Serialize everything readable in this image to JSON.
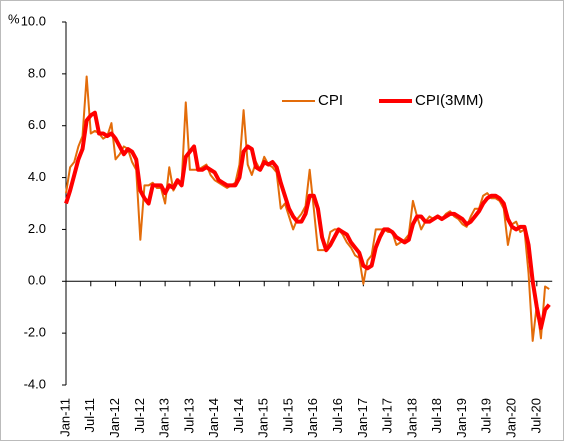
{
  "chart_data": {
    "type": "line",
    "y_unit": "%",
    "categories": [
      "Jan-11",
      null,
      null,
      null,
      null,
      null,
      "Jul-11",
      null,
      null,
      null,
      null,
      null,
      "Jan-12",
      null,
      null,
      null,
      null,
      null,
      "Jul-12",
      null,
      null,
      null,
      null,
      null,
      "Jan-13",
      null,
      null,
      null,
      null,
      null,
      "Jul-13",
      null,
      null,
      null,
      null,
      null,
      "Jan-14",
      null,
      null,
      null,
      null,
      null,
      "Jul-14",
      null,
      null,
      null,
      null,
      null,
      "Jan-15",
      null,
      null,
      null,
      null,
      null,
      "Jul-15",
      null,
      null,
      null,
      null,
      null,
      "Jan-16",
      null,
      null,
      null,
      null,
      null,
      "Jul-16",
      null,
      null,
      null,
      null,
      null,
      "Jan-17",
      null,
      null,
      null,
      null,
      null,
      "Jul-17",
      null,
      null,
      null,
      null,
      null,
      "Jan-18",
      null,
      null,
      null,
      null,
      null,
      "Jul-18",
      null,
      null,
      null,
      null,
      null,
      "Jan-19",
      null,
      null,
      null,
      null,
      null,
      "Jul-19",
      null,
      null,
      null,
      null,
      null,
      "Jan-20",
      null,
      null,
      null,
      null,
      null,
      "Jul-20",
      null,
      null,
      null
    ],
    "series": [
      {
        "name": "CPI",
        "color": "#e36c0a",
        "width": 2,
        "values": [
          3.4,
          4.4,
          4.6,
          5.2,
          5.6,
          7.9,
          5.7,
          5.8,
          5.7,
          5.5,
          5.6,
          6.1,
          4.7,
          4.9,
          5.2,
          5.1,
          4.6,
          4.3,
          1.6,
          3.7,
          3.7,
          3.8,
          3.6,
          3.6,
          3.0,
          4.4,
          3.5,
          3.8,
          3.8,
          6.9,
          4.3,
          4.3,
          4.3,
          4.4,
          4.5,
          4.1,
          3.9,
          3.8,
          3.7,
          3.6,
          3.7,
          3.8,
          4.5,
          6.6,
          4.5,
          4.1,
          4.6,
          4.3,
          4.8,
          4.5,
          4.4,
          4.2,
          2.8,
          3.0,
          2.5,
          2.0,
          2.4,
          2.6,
          2.9,
          4.3,
          2.8,
          1.2,
          1.2,
          1.2,
          1.9,
          2.0,
          2.0,
          1.8,
          1.5,
          1.3,
          1.0,
          0.9,
          -0.1,
          0.8,
          1.0,
          2.0,
          2.0,
          2.0,
          1.9,
          1.9,
          1.4,
          1.5,
          1.6,
          1.8,
          3.1,
          2.5,
          2.0,
          2.3,
          2.5,
          2.4,
          2.5,
          2.4,
          2.6,
          2.7,
          2.5,
          2.4,
          2.2,
          2.1,
          2.5,
          2.8,
          2.8,
          3.3,
          3.4,
          3.2,
          3.2,
          3.1,
          2.8,
          1.4,
          2.2,
          2.3,
          1.9,
          2.0,
          0.3,
          -2.3,
          -0.9,
          -2.2,
          -0.2,
          -0.3
        ]
      },
      {
        "name": "CPI(3MM)",
        "color": "#ff0000",
        "width": 4,
        "values": [
          3.0,
          3.5,
          4.1,
          4.7,
          5.1,
          6.2,
          6.4,
          6.5,
          5.7,
          5.7,
          5.6,
          5.7,
          5.5,
          5.2,
          4.9,
          5.1,
          5.0,
          4.7,
          3.5,
          3.2,
          3.0,
          3.7,
          3.7,
          3.7,
          3.4,
          3.7,
          3.6,
          3.9,
          3.7,
          4.8,
          5.0,
          5.2,
          4.3,
          4.3,
          4.4,
          4.3,
          4.2,
          3.9,
          3.8,
          3.7,
          3.7,
          3.7,
          4.0,
          5.0,
          5.2,
          5.1,
          4.4,
          4.3,
          4.6,
          4.5,
          4.6,
          4.4,
          3.8,
          3.3,
          2.8,
          2.5,
          2.3,
          2.3,
          2.6,
          3.3,
          3.3,
          2.8,
          1.7,
          1.2,
          1.4,
          1.7,
          2.0,
          1.9,
          1.8,
          1.5,
          1.3,
          1.1,
          0.6,
          0.5,
          0.6,
          1.3,
          1.7,
          2.0,
          2.0,
          1.9,
          1.7,
          1.6,
          1.5,
          1.6,
          2.2,
          2.5,
          2.5,
          2.3,
          2.3,
          2.4,
          2.5,
          2.4,
          2.5,
          2.6,
          2.6,
          2.5,
          2.4,
          2.2,
          2.3,
          2.5,
          2.7,
          3.0,
          3.2,
          3.3,
          3.3,
          3.2,
          3.0,
          2.4,
          2.1,
          2.0,
          2.1,
          2.1,
          1.4,
          0.0,
          -1.0,
          -1.8,
          -1.1,
          -0.9
        ]
      }
    ],
    "ylim": [
      -4,
      10
    ],
    "yticks": [
      {
        "value": -4,
        "label": "-4.0"
      },
      {
        "value": -2,
        "label": "-2.0"
      },
      {
        "value": 0,
        "label": "0.0"
      },
      {
        "value": 2,
        "label": "2.0"
      },
      {
        "value": 4,
        "label": "4.0"
      },
      {
        "value": 6,
        "label": "6.0"
      },
      {
        "value": 8,
        "label": "8.0"
      },
      {
        "value": 10,
        "label": "10.0"
      }
    ],
    "grid": false
  }
}
